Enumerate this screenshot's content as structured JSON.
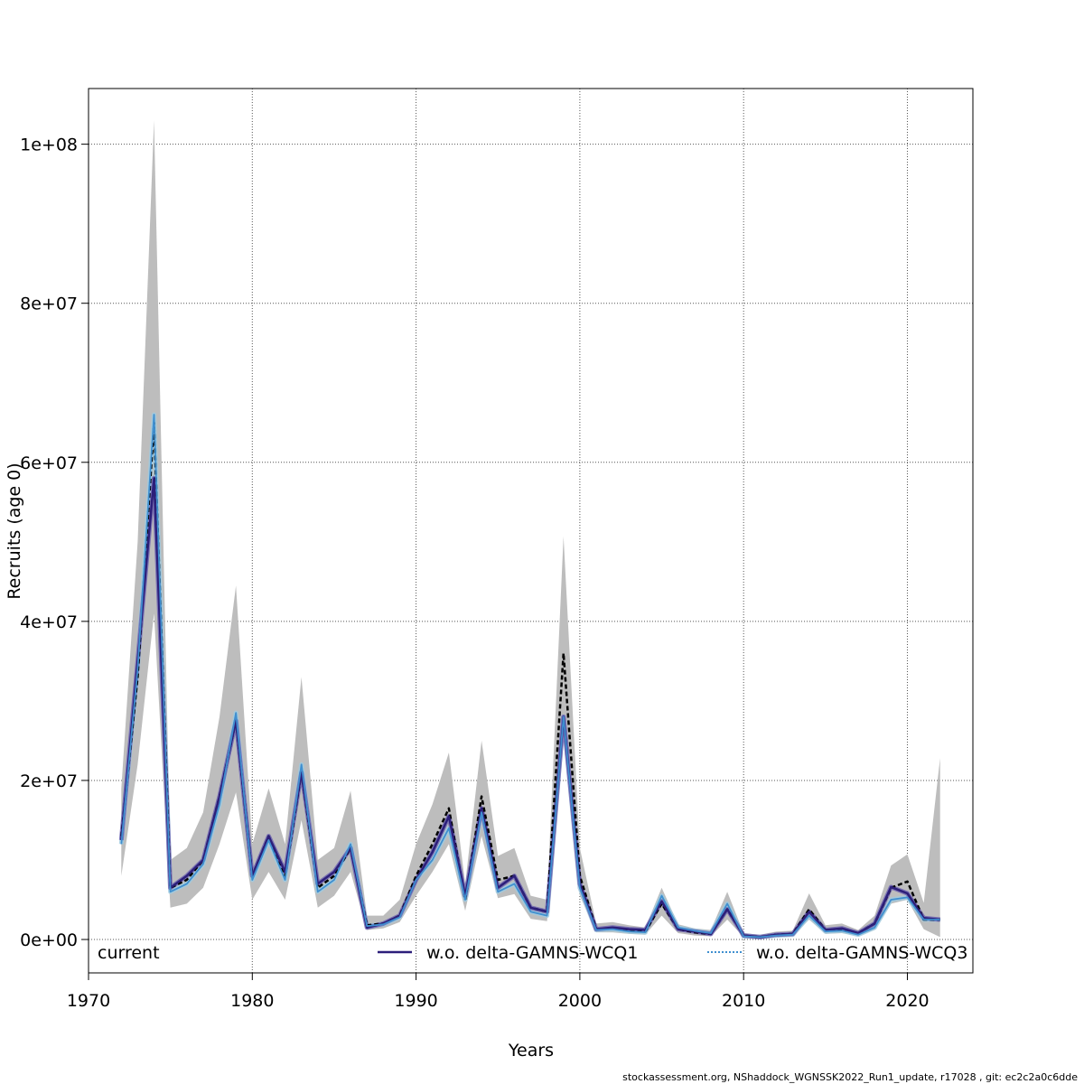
{
  "chart_data": {
    "type": "line",
    "xlabel": "Years",
    "ylabel": "Recruits (age 0)",
    "xlim": [
      1970,
      2024
    ],
    "ylim": [
      -4200000,
      107000000
    ],
    "x_ticks": [
      1970,
      1980,
      1990,
      2000,
      2010,
      2020
    ],
    "x_tick_labels": [
      "1970",
      "1980",
      "1990",
      "2000",
      "2010",
      "2020"
    ],
    "y_ticks": [
      0,
      20000000,
      40000000,
      60000000,
      80000000,
      100000000
    ],
    "y_tick_labels": [
      "0e+00",
      "2e+07",
      "4e+07",
      "6e+07",
      "8e+07",
      "1e+08"
    ],
    "grid": true,
    "legend_position": "bottom",
    "years": [
      1972,
      1973,
      1974,
      1975,
      1976,
      1977,
      1978,
      1979,
      1980,
      1981,
      1982,
      1983,
      1984,
      1985,
      1986,
      1987,
      1988,
      1989,
      1990,
      1991,
      1992,
      1993,
      1994,
      1995,
      1996,
      1997,
      1998,
      1999,
      2000,
      2001,
      2002,
      2003,
      2004,
      2005,
      2006,
      2007,
      2008,
      2009,
      2010,
      2011,
      2012,
      2013,
      2014,
      2015,
      2016,
      2017,
      2018,
      2019,
      2020,
      2021,
      2022
    ],
    "series": [
      {
        "name": "current",
        "color": "#000000",
        "band_color": "#bdbdbd",
        "values": [
          13000000,
          33000000,
          65000000,
          6500000,
          7500000,
          10000000,
          18000000,
          27500000,
          8000000,
          13000000,
          8000000,
          21000000,
          6500000,
          8000000,
          11500000,
          1800000,
          2000000,
          3000000,
          8000000,
          12000000,
          16500000,
          5000000,
          18000000,
          7500000,
          8000000,
          4000000,
          3500000,
          36000000,
          8000000,
          1300000,
          1400000,
          1200000,
          1000000,
          4500000,
          1300000,
          900000,
          700000,
          3800000,
          500000,
          300000,
          600000,
          700000,
          3800000,
          1200000,
          1300000,
          800000,
          2000000,
          6500000,
          7300000,
          2500000,
          2500000
        ],
        "lower": [
          8000000,
          22000000,
          41000000,
          4000000,
          4500000,
          6500000,
          12000000,
          18500000,
          5000000,
          8500000,
          5000000,
          15000000,
          4000000,
          5500000,
          8500000,
          1200000,
          1400000,
          2200000,
          5500000,
          8500000,
          12000000,
          3600000,
          13000000,
          5200000,
          5700000,
          2600000,
          2300000,
          26000000,
          5500000,
          900000,
          900000,
          700000,
          600000,
          3000000,
          800000,
          500000,
          400000,
          2500000,
          300000,
          150000,
          300000,
          400000,
          2500000,
          700000,
          800000,
          450000,
          1200000,
          4500000,
          5000000,
          1300000,
          300000
        ],
        "upper": [
          19000000,
          50000000,
          103000000,
          10000000,
          11500000,
          16000000,
          28000000,
          44500000,
          12000000,
          19000000,
          12000000,
          33000000,
          10000000,
          11500000,
          18700000,
          3000000,
          3000000,
          5000000,
          12000000,
          17000000,
          23500000,
          7000000,
          25000000,
          10500000,
          11500000,
          5500000,
          5000000,
          50700000,
          11500000,
          2000000,
          2200000,
          1800000,
          1500000,
          6500000,
          1900000,
          1400000,
          1200000,
          6000000,
          800000,
          600000,
          1000000,
          1100000,
          5800000,
          1800000,
          2000000,
          1200000,
          3000000,
          9300000,
          10700000,
          4600000,
          22800000
        ]
      },
      {
        "name": "w.o. delta-GAMNS-WCQ1",
        "color": "#2c1f7a",
        "band_color": "#6a5fb0",
        "values": [
          12500000,
          35000000,
          58000000,
          6500000,
          8000000,
          10000000,
          18000000,
          27500000,
          8000000,
          13000000,
          8500000,
          21000000,
          7000000,
          8500000,
          11500000,
          1500000,
          2000000,
          3000000,
          7500000,
          11000000,
          15500000,
          5500000,
          16500000,
          6500000,
          8000000,
          4000000,
          3500000,
          28000000,
          7000000,
          1300000,
          1500000,
          1300000,
          1200000,
          4800000,
          1300000,
          1000000,
          700000,
          3800000,
          500000,
          300000,
          600000,
          700000,
          3500000,
          1200000,
          1400000,
          800000,
          2000000,
          6600000,
          5800000,
          2700000,
          2500000
        ]
      },
      {
        "name": "w.o. delta-GAMNS-WCQ3",
        "color": "#3f8fd0",
        "band_color": "#9ecae1",
        "values": [
          12000000,
          34000000,
          66000000,
          6000000,
          7000000,
          9500000,
          17000000,
          28500000,
          7500000,
          12500000,
          7500000,
          22000000,
          6000000,
          7500000,
          12000000,
          1700000,
          1900000,
          2800000,
          7500000,
          10000000,
          14000000,
          5000000,
          16000000,
          6000000,
          7000000,
          3500000,
          3000000,
          28000000,
          6500000,
          1200000,
          1300000,
          1000000,
          900000,
          5500000,
          1500000,
          1100000,
          800000,
          4500000,
          400000,
          300000,
          500000,
          600000,
          3000000,
          1000000,
          1100000,
          600000,
          1500000,
          5000000,
          5300000,
          2500000,
          2500000
        ]
      }
    ]
  },
  "footer": "stockassessment.org, NShaddock_WGNSSK2022_Run1_update, r17028 , git: ec2c2a0c6dde"
}
